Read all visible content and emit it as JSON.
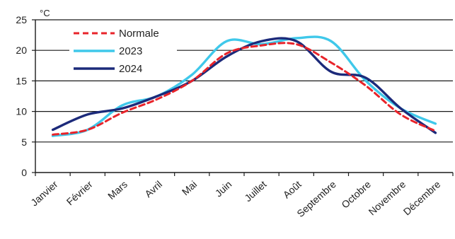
{
  "chart_data": {
    "type": "line",
    "title": "",
    "xlabel": "",
    "ylabel": "°C",
    "ylim": [
      0,
      25
    ],
    "yticks": [
      0,
      5,
      10,
      15,
      20,
      25
    ],
    "grid": true,
    "legend_position": "top-left",
    "categories": [
      "Janvier",
      "Février",
      "Mars",
      "Avril",
      "Mai",
      "Juin",
      "Juillet",
      "Août",
      "Septembre",
      "Octobre",
      "Novembre",
      "Décembre"
    ],
    "series": [
      {
        "name": "Normale",
        "color": "#e8232a",
        "style": "dashed",
        "values": [
          6.2,
          7.0,
          9.8,
          12.0,
          15.0,
          19.5,
          20.8,
          21.0,
          18.0,
          14.2,
          9.5,
          6.8
        ]
      },
      {
        "name": "2023",
        "color": "#3fc8ea",
        "style": "solid",
        "values": [
          6.0,
          7.0,
          11.0,
          12.5,
          16.0,
          21.5,
          21.0,
          22.0,
          21.5,
          15.0,
          10.5,
          8.0
        ]
      },
      {
        "name": "2024",
        "color": "#1c2a7a",
        "style": "solid",
        "values": [
          7.0,
          9.5,
          10.5,
          12.5,
          15.0,
          19.0,
          21.5,
          21.5,
          16.5,
          15.5,
          10.5,
          6.5
        ]
      }
    ]
  }
}
